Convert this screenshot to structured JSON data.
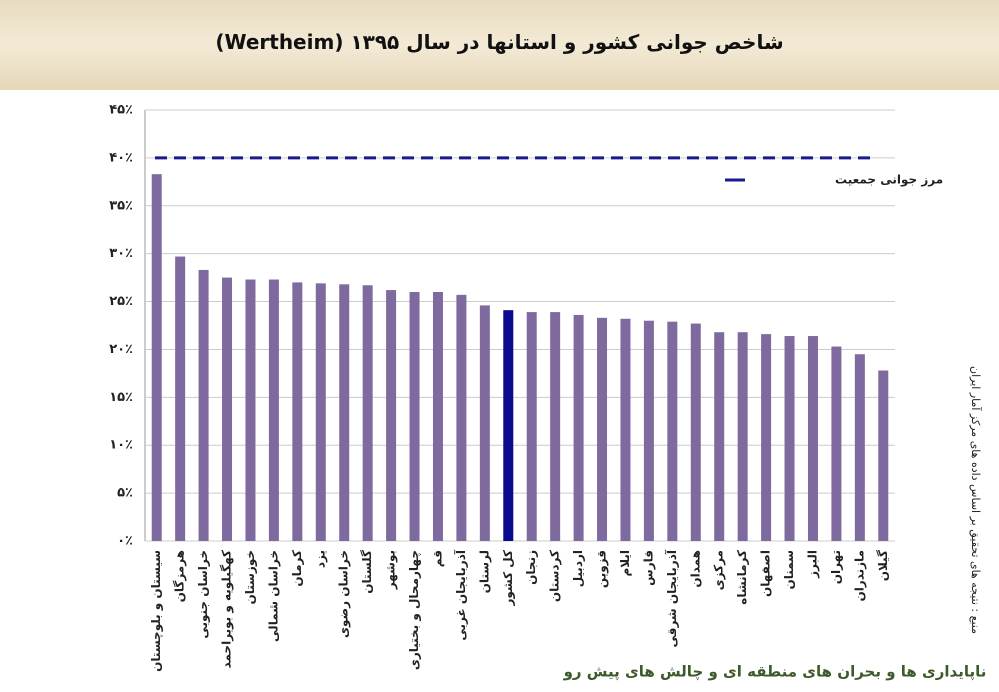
{
  "header": {
    "title": "شاخص جوانی کشور و استانها در سال ۱۳۹۵ (Wertheim)"
  },
  "chart_data": {
    "type": "bar",
    "categories": [
      "سیستان و بلوچستان",
      "هرمزگان",
      "خراسان جنوبی",
      "کهگیلویه و بویراحمد",
      "خوزستان",
      "خراسان شمالی",
      "کرمان",
      "یزد",
      "خراسان رضوی",
      "گلستان",
      "بوشهر",
      "چهارمحال و بختیاری",
      "قم",
      "آذربایجان غربی",
      "لرستان",
      "کل کشور",
      "زنجان",
      "کردستان",
      "اردبیل",
      "قزوین",
      "ایلام",
      "فارس",
      "آذربایجان شرقی",
      "همدان",
      "مرکزی",
      "کرمانشاه",
      "اصفهان",
      "سمنان",
      "البرز",
      "تهران",
      "مازندران",
      "گیلان"
    ],
    "values": [
      38.3,
      29.7,
      28.3,
      27.5,
      27.3,
      27.3,
      27.0,
      26.9,
      26.8,
      26.7,
      26.2,
      26.0,
      26.0,
      25.7,
      24.6,
      24.1,
      23.9,
      23.9,
      23.6,
      23.3,
      23.2,
      23.0,
      22.9,
      22.7,
      21.8,
      21.8,
      21.6,
      21.4,
      21.4,
      20.3,
      19.5,
      17.8
    ],
    "colors": [
      "#7e6a9f",
      "#7e6a9f",
      "#7e6a9f",
      "#7e6a9f",
      "#7e6a9f",
      "#7e6a9f",
      "#7e6a9f",
      "#7e6a9f",
      "#7e6a9f",
      "#7e6a9f",
      "#7e6a9f",
      "#7e6a9f",
      "#7e6a9f",
      "#7e6a9f",
      "#7e6a9f",
      "#0a0a8f",
      "#7e6a9f",
      "#7e6a9f",
      "#7e6a9f",
      "#7e6a9f",
      "#7e6a9f",
      "#7e6a9f",
      "#7e6a9f",
      "#7e6a9f",
      "#7e6a9f",
      "#7e6a9f",
      "#7e6a9f",
      "#7e6a9f",
      "#7e6a9f",
      "#7e6a9f",
      "#7e6a9f",
      "#7e6a9f"
    ],
    "ylim": [
      0,
      45
    ],
    "yticks": [
      {
        "value": 0,
        "label": "۰٪"
      },
      {
        "value": 5,
        "label": "۵٪"
      },
      {
        "value": 10,
        "label": "۱۰٪"
      },
      {
        "value": 15,
        "label": "۱۵٪"
      },
      {
        "value": 20,
        "label": "۲۰٪"
      },
      {
        "value": 25,
        "label": "۲۵٪"
      },
      {
        "value": 30,
        "label": "۳۰٪"
      },
      {
        "value": 35,
        "label": "۳۵٪"
      },
      {
        "value": 40,
        "label": "۴۰٪"
      },
      {
        "value": 45,
        "label": "۴۵٪"
      }
    ],
    "grid": true,
    "reference_line": {
      "value": 40,
      "label": "مرز جوانی جمعیت",
      "color": "#1a1a8c"
    },
    "legend": "upper right"
  },
  "source": "منبع : نتیجه های تحقیق بر اساس داده های مرکز آمار ایران",
  "footer": "ناپایداری ها و بحران های منطقه ای و چالش های پیش رو"
}
